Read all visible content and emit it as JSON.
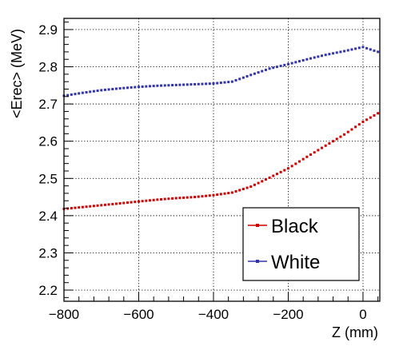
{
  "chart_data": {
    "type": "line",
    "title": "",
    "xlabel": "Z (mm)",
    "ylabel": "<Erec> (MeV)",
    "xlim": [
      -800,
      45
    ],
    "ylim": [
      2.17,
      2.93
    ],
    "x_ticks": [
      -800,
      -600,
      -400,
      -200,
      0
    ],
    "x_tick_labels": [
      "−800",
      "−600",
      "−400",
      "−200",
      "0"
    ],
    "y_ticks": [
      2.2,
      2.3,
      2.4,
      2.5,
      2.6,
      2.7,
      2.8,
      2.9
    ],
    "y_tick_labels": [
      "2.2",
      "2.3",
      "2.4",
      "2.5",
      "2.6",
      "2.7",
      "2.8",
      "2.9"
    ],
    "grid": true,
    "legend_position": "bottom-right",
    "series": [
      {
        "name": "Black",
        "color": "#cc0000",
        "x": [
          -800,
          -750,
          -700,
          -650,
          -600,
          -550,
          -500,
          -450,
          -400,
          -350,
          -300,
          -250,
          -200,
          -150,
          -100,
          -50,
          0,
          40
        ],
        "values": [
          2.418,
          2.423,
          2.428,
          2.433,
          2.438,
          2.443,
          2.447,
          2.45,
          2.455,
          2.462,
          2.478,
          2.502,
          2.527,
          2.558,
          2.588,
          2.618,
          2.652,
          2.675
        ]
      },
      {
        "name": "White",
        "color": "#3333aa",
        "x": [
          -800,
          -750,
          -700,
          -650,
          -600,
          -550,
          -500,
          -450,
          -400,
          -350,
          -300,
          -250,
          -200,
          -150,
          -100,
          -50,
          0,
          40
        ],
        "values": [
          2.722,
          2.73,
          2.737,
          2.742,
          2.746,
          2.749,
          2.751,
          2.753,
          2.755,
          2.76,
          2.778,
          2.795,
          2.807,
          2.82,
          2.832,
          2.842,
          2.853,
          2.84
        ]
      }
    ]
  }
}
